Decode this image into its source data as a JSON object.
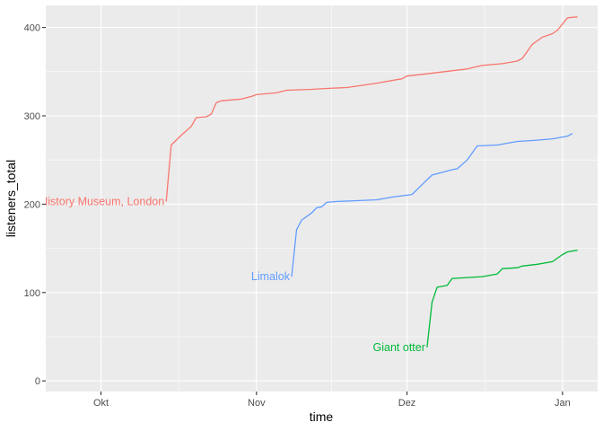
{
  "chart_data": {
    "type": "line",
    "xlabel": "time",
    "ylabel": "listeners_total",
    "x_axis": {
      "type": "date",
      "range": [
        "2023-09-20",
        "2024-01-08"
      ],
      "ticks": [
        {
          "date": "2023-10-01",
          "label": "Okt"
        },
        {
          "date": "2023-11-01",
          "label": "Nov"
        },
        {
          "date": "2023-12-01",
          "label": "Dez"
        },
        {
          "date": "2024-01-01",
          "label": "Jan"
        }
      ]
    },
    "y_axis": {
      "range": [
        -12,
        425
      ],
      "ticks": [
        0,
        100,
        200,
        300,
        400
      ]
    },
    "grid": true,
    "legend": "none",
    "series": [
      {
        "name": "History Museum, London",
        "label": "History Museum, London",
        "color": "#F8766D",
        "points": [
          [
            "2023-10-14",
            203
          ],
          [
            "2023-10-15",
            267
          ],
          [
            "2023-10-17",
            278
          ],
          [
            "2023-10-19",
            288
          ],
          [
            "2023-10-20",
            298
          ],
          [
            "2023-10-22",
            299
          ],
          [
            "2023-10-23",
            302
          ],
          [
            "2023-10-24",
            315
          ],
          [
            "2023-10-25",
            317
          ],
          [
            "2023-10-27",
            318
          ],
          [
            "2023-10-29",
            319
          ],
          [
            "2023-10-31",
            322
          ],
          [
            "2023-11-01",
            324
          ],
          [
            "2023-11-05",
            326
          ],
          [
            "2023-11-07",
            329
          ],
          [
            "2023-11-12",
            330
          ],
          [
            "2023-11-15",
            331
          ],
          [
            "2023-11-19",
            332
          ],
          [
            "2023-11-25",
            337
          ],
          [
            "2023-11-30",
            342
          ],
          [
            "2023-12-01",
            345
          ],
          [
            "2023-12-04",
            347
          ],
          [
            "2023-12-07",
            349
          ],
          [
            "2023-12-10",
            351
          ],
          [
            "2023-12-13",
            353
          ],
          [
            "2023-12-16",
            357
          ],
          [
            "2023-12-20",
            359
          ],
          [
            "2023-12-23",
            362
          ],
          [
            "2023-12-24",
            365
          ],
          [
            "2023-12-26",
            381
          ],
          [
            "2023-12-28",
            389
          ],
          [
            "2023-12-30",
            393
          ],
          [
            "2023-12-31",
            397
          ],
          [
            "2024-01-01",
            404
          ],
          [
            "2024-01-02",
            411
          ],
          [
            "2024-01-04",
            412
          ]
        ]
      },
      {
        "name": "Limalok",
        "label": "Limalok",
        "color": "#619CFF",
        "points": [
          [
            "2023-11-08",
            118
          ],
          [
            "2023-11-09",
            171
          ],
          [
            "2023-11-10",
            182
          ],
          [
            "2023-11-12",
            190
          ],
          [
            "2023-11-13",
            196
          ],
          [
            "2023-11-14",
            197
          ],
          [
            "2023-11-15",
            202
          ],
          [
            "2023-11-17",
            203
          ],
          [
            "2023-11-21",
            204
          ],
          [
            "2023-11-25",
            205
          ],
          [
            "2023-11-28",
            208
          ],
          [
            "2023-12-02",
            211
          ],
          [
            "2023-12-04",
            222
          ],
          [
            "2023-12-06",
            233
          ],
          [
            "2023-12-08",
            236
          ],
          [
            "2023-12-10",
            239
          ],
          [
            "2023-12-11",
            240
          ],
          [
            "2023-12-13",
            250
          ],
          [
            "2023-12-15",
            266
          ],
          [
            "2023-12-19",
            267
          ],
          [
            "2023-12-21",
            269
          ],
          [
            "2023-12-23",
            271
          ],
          [
            "2023-12-26",
            272
          ],
          [
            "2023-12-30",
            274
          ],
          [
            "2024-01-02",
            277
          ],
          [
            "2024-01-03",
            280
          ]
        ]
      },
      {
        "name": "Giant otter",
        "label": "Giant otter",
        "color": "#00BA38",
        "points": [
          [
            "2023-12-05",
            38
          ],
          [
            "2023-12-06",
            89
          ],
          [
            "2023-12-07",
            106
          ],
          [
            "2023-12-09",
            108
          ],
          [
            "2023-12-10",
            116
          ],
          [
            "2023-12-13",
            117
          ],
          [
            "2023-12-16",
            118
          ],
          [
            "2023-12-18",
            120
          ],
          [
            "2023-12-19",
            121
          ],
          [
            "2023-12-20",
            127
          ],
          [
            "2023-12-23",
            128
          ],
          [
            "2023-12-24",
            130
          ],
          [
            "2023-12-27",
            132
          ],
          [
            "2023-12-30",
            135
          ],
          [
            "2024-01-01",
            143
          ],
          [
            "2024-01-02",
            146
          ],
          [
            "2024-01-04",
            148
          ]
        ]
      }
    ]
  }
}
